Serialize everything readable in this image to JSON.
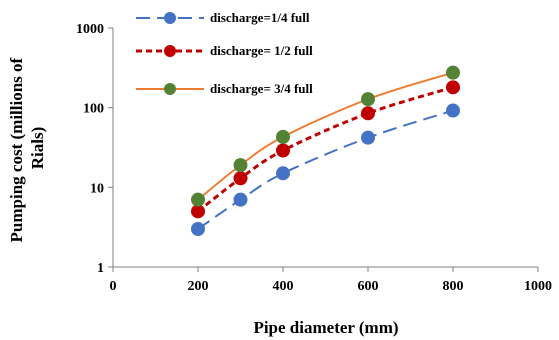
{
  "chart_data": {
    "type": "line",
    "xlabel": "Pipe diameter (mm)",
    "ylabel_lines": [
      "Pumping cost (millions of",
      "Rials)"
    ],
    "xlim": [
      0,
      1000
    ],
    "ylim": [
      1,
      1000
    ],
    "yscale": "log",
    "x_ticks": [
      0,
      200,
      400,
      600,
      800,
      1000
    ],
    "y_ticks": [
      1,
      10,
      100,
      1000
    ],
    "grid": false,
    "legend_position": "top",
    "x": [
      200,
      300,
      400,
      600,
      800
    ],
    "series": [
      {
        "name": "discharge=1/4 full",
        "values": [
          3,
          7,
          15,
          42,
          92
        ],
        "line_color": "#4472c4",
        "marker_color": "#4472c4",
        "dash": "long-dash",
        "marker": "circle"
      },
      {
        "name": "discharge= 1/2 full",
        "values": [
          5,
          13,
          29,
          85,
          180
        ],
        "line_color": "#c00000",
        "marker_color": "#c00000",
        "dash": "short-dash",
        "marker": "circle"
      },
      {
        "name": "discharge= 3/4 full",
        "values": [
          7,
          19,
          43,
          128,
          275
        ],
        "line_color": "#ed7d31",
        "marker_color": "#548235",
        "dash": "solid",
        "marker": "circle"
      }
    ]
  }
}
